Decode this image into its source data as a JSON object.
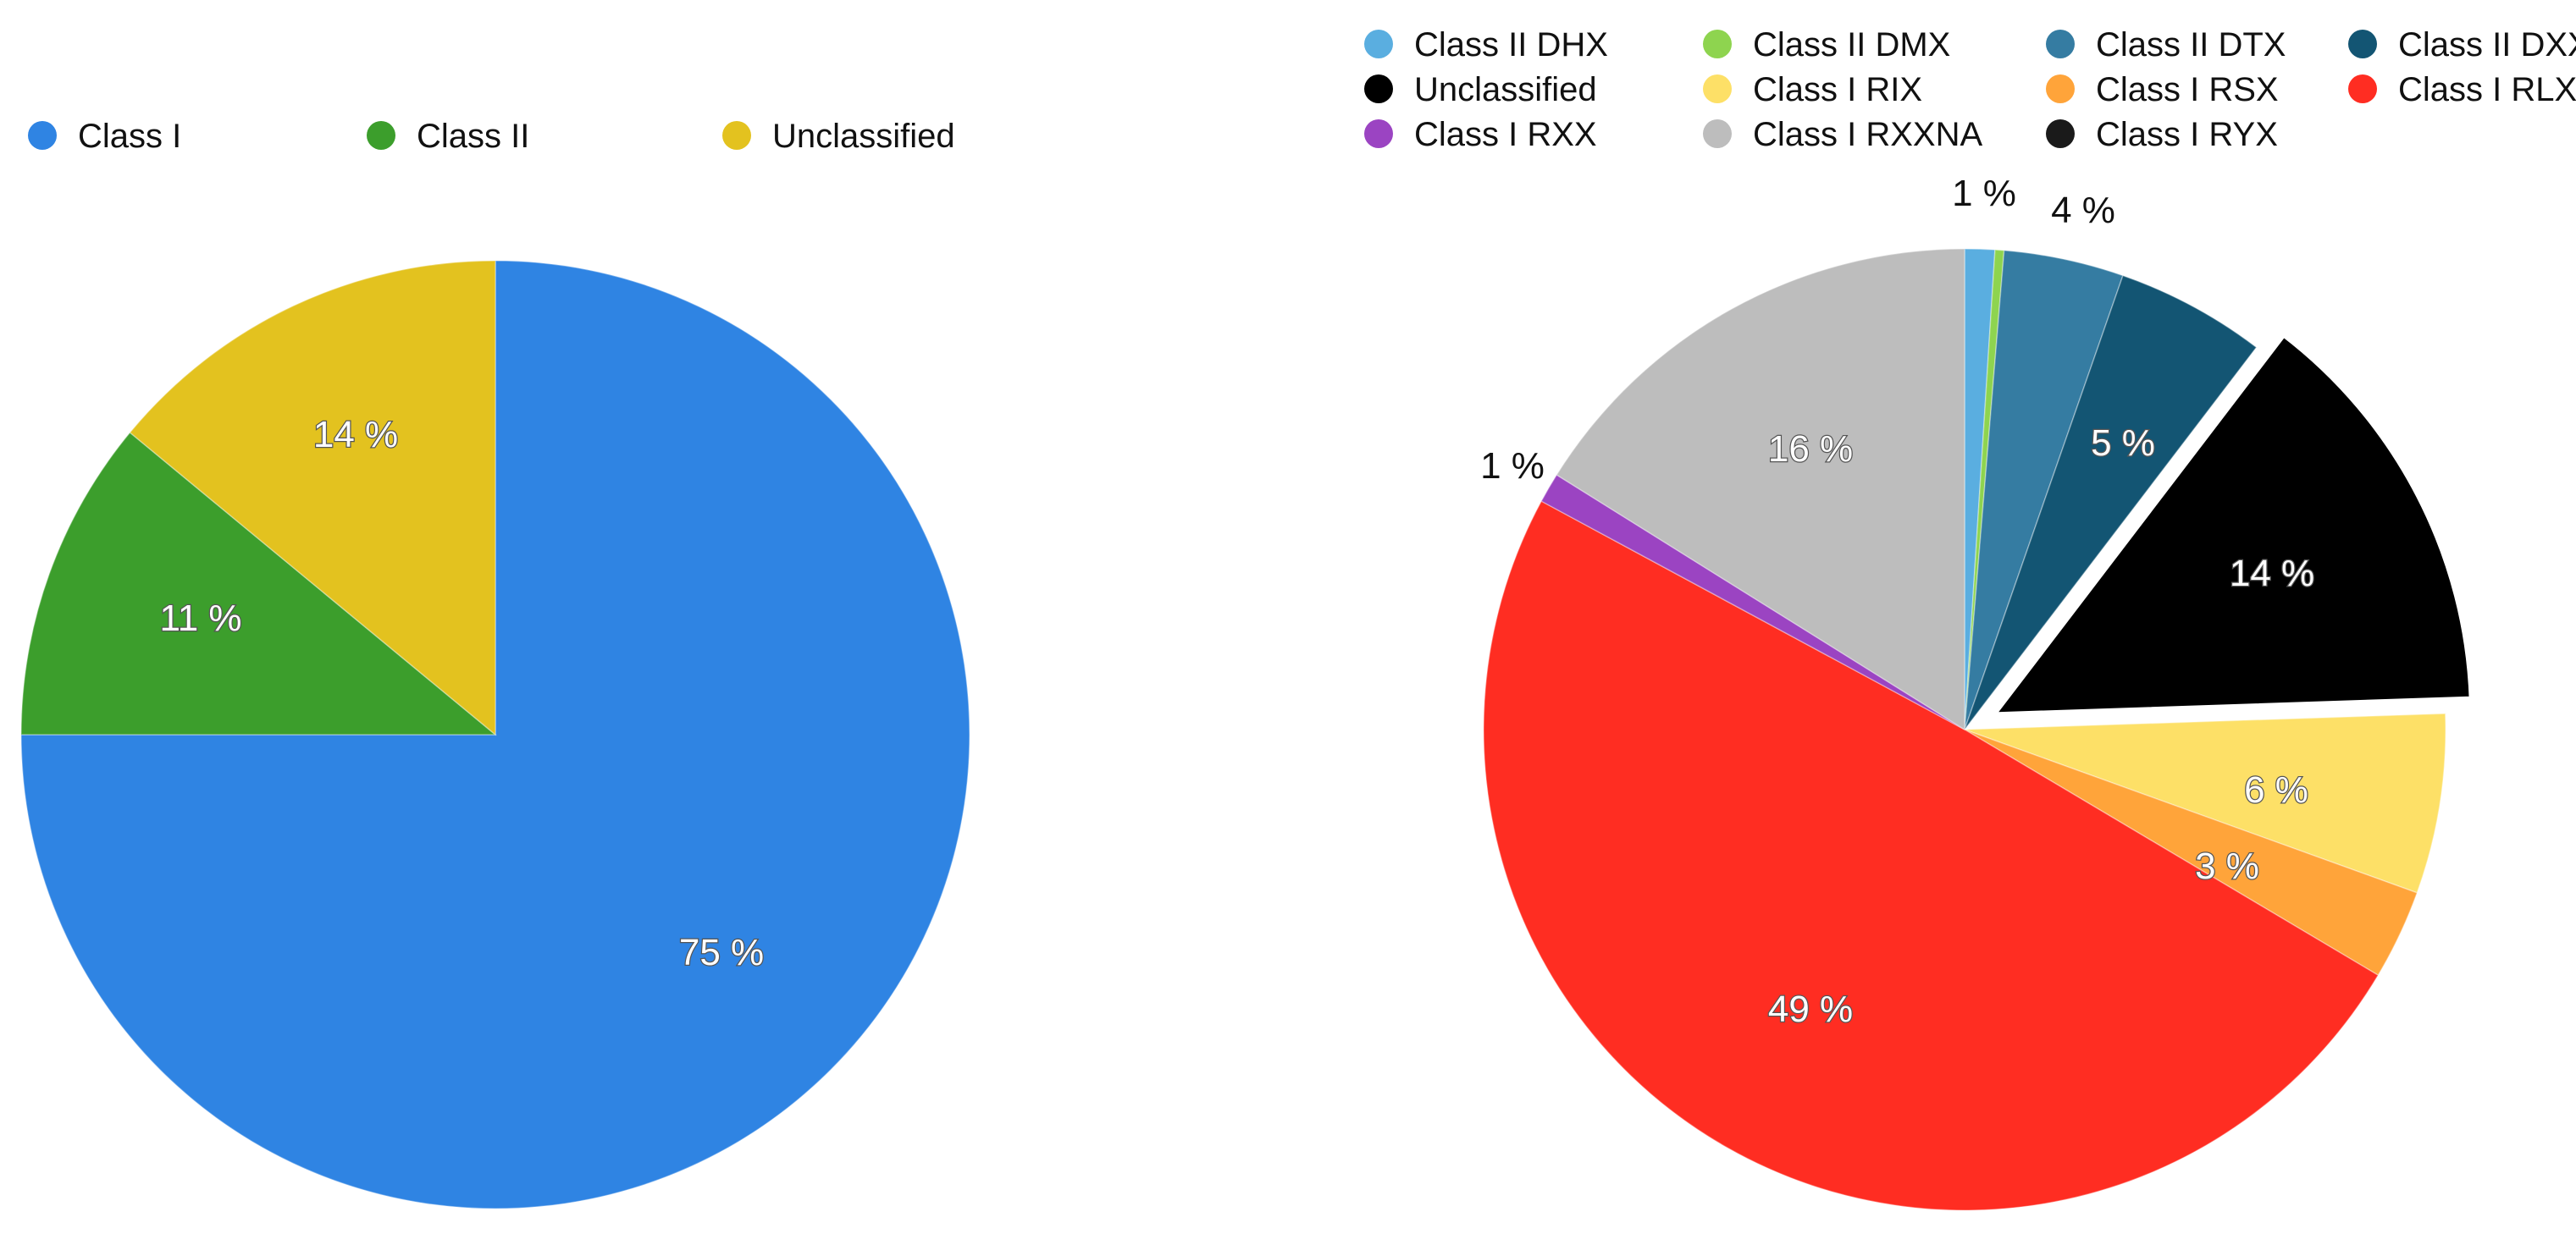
{
  "chart_data": [
    {
      "type": "pie",
      "legend": "top",
      "slices": [
        {
          "name": "Class I",
          "value": 75,
          "label": "75 %",
          "color": "#2f84e3"
        },
        {
          "name": "Class II",
          "value": 11,
          "label": "11 %",
          "color": "#3c9e2c"
        },
        {
          "name": "Unclassified",
          "value": 14,
          "label": "14 %",
          "color": "#e3c21f"
        }
      ]
    },
    {
      "type": "pie",
      "legend": "top",
      "slices": [
        {
          "name": "Class II DHX",
          "value": 1,
          "label": "1 %",
          "color": "#5aaee0"
        },
        {
          "name": "Class II DMX",
          "value": 0.3,
          "label": "",
          "color": "#8ed44f"
        },
        {
          "name": "Class II DTX",
          "value": 4,
          "label": "4 %",
          "color": "#357ca2"
        },
        {
          "name": "Class II DXX",
          "value": 5,
          "label": "5 %",
          "color": "#135573"
        },
        {
          "name": "Unclassified",
          "value": 14,
          "label": "14 %",
          "color": "#000000",
          "exploded": true
        },
        {
          "name": "Class I RIX",
          "value": 6,
          "label": "6 %",
          "color": "#fde067"
        },
        {
          "name": "Class I RSX",
          "value": 3,
          "label": "3 %",
          "color": "#ffa43a"
        },
        {
          "name": "Class I RLX",
          "value": 49,
          "label": "49 %",
          "color": "#ff2d22"
        },
        {
          "name": "Class I RXX",
          "value": 1,
          "label": "1 %",
          "color": "#9b44c2"
        },
        {
          "name": "Class I RXXNA",
          "value": 16,
          "label": "16 %",
          "color": "#bdbdbd"
        },
        {
          "name": "Class I RYX",
          "value": 0,
          "label": "",
          "color": "#1a1a1a"
        }
      ]
    }
  ]
}
